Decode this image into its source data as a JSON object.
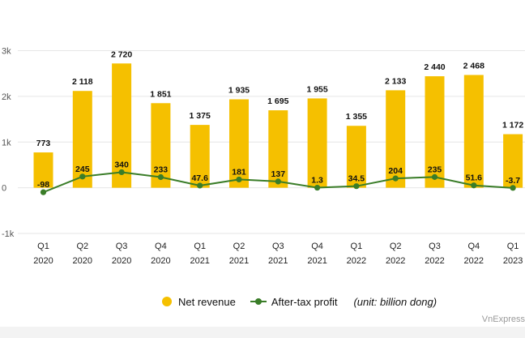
{
  "chart_data": {
    "type": "bar",
    "categories": [
      [
        "Q1",
        "2020"
      ],
      [
        "Q2",
        "2020"
      ],
      [
        "Q3",
        "2020"
      ],
      [
        "Q4",
        "2020"
      ],
      [
        "Q1",
        "2021"
      ],
      [
        "Q2",
        "2021"
      ],
      [
        "Q3",
        "2021"
      ],
      [
        "Q4",
        "2021"
      ],
      [
        "Q1",
        "2022"
      ],
      [
        "Q2",
        "2022"
      ],
      [
        "Q3",
        "2022"
      ],
      [
        "Q4",
        "2022"
      ],
      [
        "Q1",
        "2023"
      ]
    ],
    "ylim": [
      -1000,
      3000
    ],
    "yticks": [
      -1000,
      0,
      1000,
      2000,
      3000
    ],
    "ytick_labels": [
      "-1k",
      "0",
      "1k",
      "2k",
      "3k"
    ],
    "series": [
      {
        "name": "Net revenue",
        "type": "bar",
        "color": "#f5c000",
        "values": [
          773,
          2118,
          2720,
          1851,
          1375,
          1935,
          1695,
          1955,
          1355,
          2133,
          2440,
          2468,
          1172
        ],
        "labels": [
          "773",
          "2 118",
          "2 720",
          "1 851",
          "1 375",
          "1 935",
          "1 695",
          "1 955",
          "1 355",
          "2 133",
          "2 440",
          "2 468",
          "1 172"
        ]
      },
      {
        "name": "After-tax profit",
        "type": "line",
        "color": "#3a7d28",
        "values": [
          -98,
          245,
          340,
          233,
          47.6,
          181,
          137,
          1.3,
          34.5,
          204,
          235,
          51.6,
          -3.7
        ],
        "labels": [
          "-98",
          "245",
          "340",
          "233",
          "47.6",
          "181",
          "137",
          "1.3",
          "34.5",
          "204",
          "235",
          "51.6",
          "-3.7"
        ]
      }
    ],
    "unit_note": "(unit: billion dong)",
    "legend_position": "bottom-center",
    "grid": true
  },
  "watermark": "VnExpress"
}
